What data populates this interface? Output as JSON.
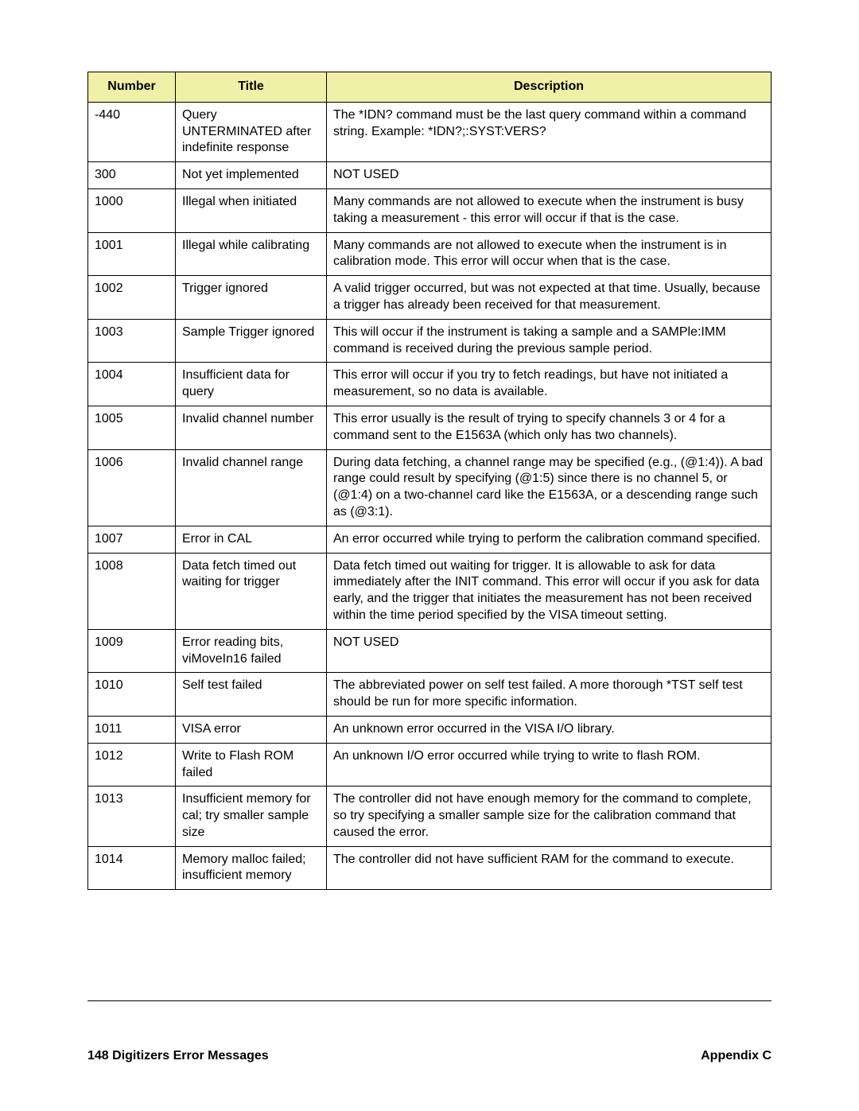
{
  "table": {
    "headers": {
      "number": "Number",
      "title": "Title",
      "description": "Description"
    },
    "header_bg": "#f0f0a8",
    "border_color": "#000000",
    "rows": [
      {
        "number": "-440",
        "title": "Query UNTERMINATED after indefinite response",
        "description": "The *IDN? command must be the last query command within a command string. Example:  *IDN?;:SYST:VERS?"
      },
      {
        "number": "300",
        "title": "Not yet implemented",
        "description": "NOT USED"
      },
      {
        "number": "1000",
        "title": "Illegal when initiated",
        "description": "Many commands are not allowed to execute when the instrument is busy taking a measurement - this error will occur if that is the case."
      },
      {
        "number": "1001",
        "title": "Illegal while calibrating",
        "description": "Many commands are not allowed to execute when the instrument is in calibration mode. This error will occur when that is the case."
      },
      {
        "number": "1002",
        "title": "Trigger ignored",
        "description": "A valid trigger occurred, but was not expected at that time. Usually, because a trigger has already been received for that measurement."
      },
      {
        "number": "1003",
        "title": "Sample Trigger ignored",
        "description": "This will occur if the instrument is taking a sample and a SAMPle:IMM command is received during the previous sample period."
      },
      {
        "number": "1004",
        "title": "Insufficient data for query",
        "description": "This error will occur if you try to fetch readings, but have not initiated a measurement, so no data is available."
      },
      {
        "number": "1005",
        "title": "Invalid channel number",
        "description": "This error usually is the result of trying to specify channels 3 or 4 for a command sent to the E1563A (which only has two channels)."
      },
      {
        "number": "1006",
        "title": "Invalid channel range",
        "description": "During data fetching, a channel range may be specified (e.g., (@1:4)). A bad range could result by specifying (@1:5) since there is no channel 5, or (@1:4) on a two-channel card like the E1563A, or a descending range such as (@3:1)."
      },
      {
        "number": "1007",
        "title": "Error in CAL",
        "description": "An error occurred while trying to perform the calibration command specified."
      },
      {
        "number": "1008",
        "title": "Data fetch timed out waiting for trigger",
        "description": "Data fetch timed out waiting for trigger. It is allowable to ask for data immediately after the INIT command. This error will occur if you ask for data early, and the trigger that initiates the measurement has not been received within the time period specified by the VISA timeout setting."
      },
      {
        "number": "1009",
        "title": "Error reading bits, viMoveIn16 failed",
        "description": "NOT USED"
      },
      {
        "number": "1010",
        "title": "Self test failed",
        "description": "The abbreviated power on self test failed.  A more thorough *TST self test should be run for more specific information."
      },
      {
        "number": "1011",
        "title": "VISA error",
        "description": "An unknown error occurred in the VISA I/O library."
      },
      {
        "number": "1012",
        "title": "Write to Flash ROM failed",
        "description": "An unknown I/O error occurred while trying to write to flash ROM."
      },
      {
        "number": "1013",
        "title": "Insufficient memory for cal; try smaller sample size",
        "description": "The controller did not have enough memory for the command to complete, so try specifying a smaller sample size for the calibration command that caused the error."
      },
      {
        "number": "1014",
        "title": "Memory malloc failed; insufficient memory",
        "description": "The controller did not have sufficient RAM for the command to execute."
      }
    ]
  },
  "footer": {
    "left": "148 Digitizers Error Messages",
    "right": "Appendix C"
  }
}
